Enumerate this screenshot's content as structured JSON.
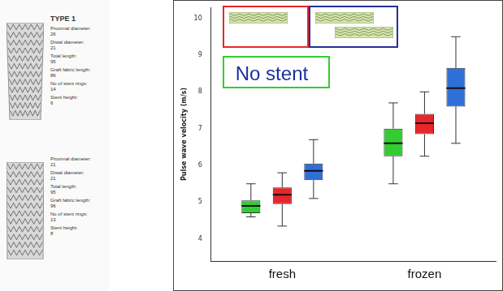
{
  "stent_specs": [
    {
      "title": "TYPE 1",
      "fields": [
        {
          "label": "Proximal diameter:",
          "value": "26"
        },
        {
          "label": "Distal diameter:",
          "value": "21"
        },
        {
          "label": "Total length:",
          "value": "95"
        },
        {
          "label": "Graft fabric length:",
          "value": "86"
        },
        {
          "label": "No of stent rings:",
          "value": "14"
        },
        {
          "label": "Stent height:",
          "value": "6"
        }
      ]
    },
    {
      "fields": [
        {
          "label": "Proximal diameter:",
          "value": "21"
        },
        {
          "label": "Distal diameter:",
          "value": "21"
        },
        {
          "label": "Total length:",
          "value": "95"
        },
        {
          "label": "Graft fabric length:",
          "value": "96"
        },
        {
          "label": "No of stent rings:",
          "value": "13"
        },
        {
          "label": "Stent height:",
          "value": "8"
        }
      ]
    }
  ],
  "chart_data": {
    "type": "boxplot",
    "y_label": "Pulse wave velocity (m/s)",
    "categories": [
      "fresh",
      "frozen"
    ],
    "series": [
      {
        "name": "No stent",
        "color": "#33cc33",
        "values": [
          {
            "min": 4.6,
            "q1": 4.7,
            "median": 4.9,
            "q3": 5.05,
            "max": 5.5
          },
          {
            "min": 5.5,
            "q1": 6.25,
            "median": 6.6,
            "q3": 7.0,
            "max": 7.7
          }
        ]
      },
      {
        "color": "#e8262b",
        "values": [
          {
            "min": 4.35,
            "q1": 4.95,
            "median": 5.2,
            "q3": 5.4,
            "max": 5.8
          },
          {
            "min": 6.25,
            "q1": 6.85,
            "median": 7.15,
            "q3": 7.4,
            "max": 8.0
          }
        ]
      },
      {
        "color": "#2f6fd8",
        "values": [
          {
            "min": 5.1,
            "q1": 5.6,
            "median": 5.85,
            "q3": 6.05,
            "max": 6.7
          },
          {
            "min": 6.6,
            "q1": 7.6,
            "median": 8.1,
            "q3": 8.65,
            "max": 9.5
          }
        ]
      }
    ],
    "ylim": [
      3.4,
      10.3
    ],
    "yticks": [
      4,
      5,
      6,
      7,
      8,
      9,
      10
    ],
    "grid": false,
    "legend": "top-left"
  }
}
